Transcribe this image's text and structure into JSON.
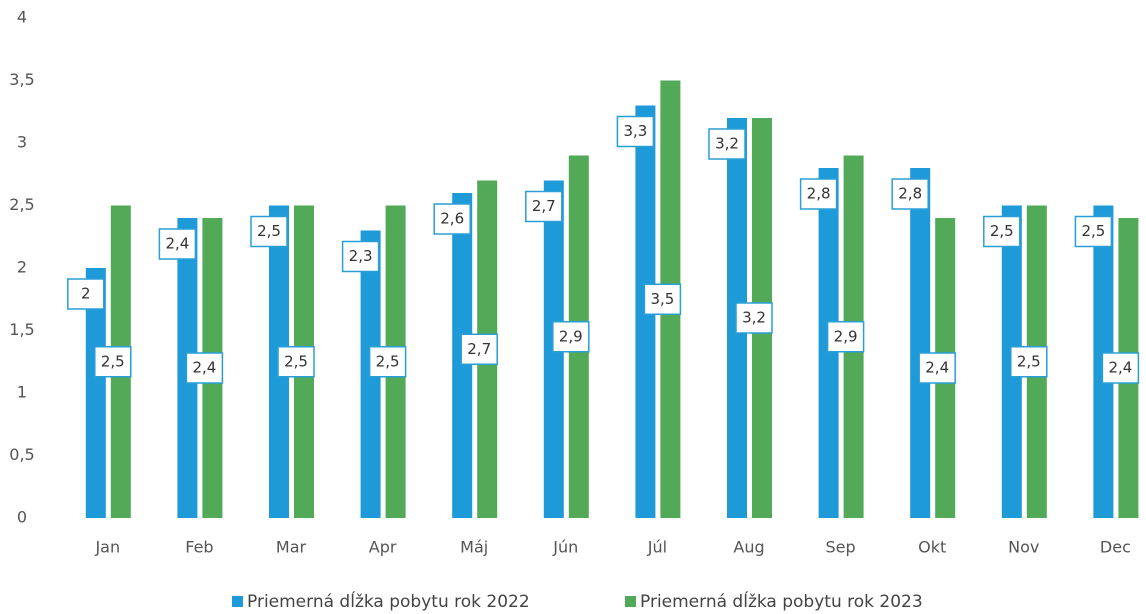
{
  "chart_data": {
    "type": "bar",
    "categories": [
      "Jan",
      "Feb",
      "Mar",
      "Apr",
      "Máj",
      "Jún",
      "Júl",
      "Aug",
      "Sep",
      "Okt",
      "Nov",
      "Dec"
    ],
    "series": [
      {
        "name": "Priemerná dĺžka pobytu rok 2022",
        "color": "#1f9ad8",
        "values": [
          2,
          2.4,
          2.5,
          2.3,
          2.6,
          2.7,
          3.3,
          3.2,
          2.8,
          2.8,
          2.5,
          2.5
        ],
        "value_labels": [
          "2",
          "2,4",
          "2,5",
          "2,3",
          "2,6",
          "2,7",
          "3,3",
          "3,2",
          "2,8",
          "2,8",
          "2,5",
          "2,5"
        ]
      },
      {
        "name": "Priemerná dĺžka pobytu rok 2023",
        "color": "#52a957",
        "values": [
          2.5,
          2.4,
          2.5,
          2.5,
          2.7,
          2.9,
          3.5,
          3.2,
          2.9,
          2.4,
          2.5,
          2.4
        ],
        "value_labels": [
          "2,5",
          "2,4",
          "2,5",
          "2,5",
          "2,7",
          "2,9",
          "3,5",
          "3,2",
          "2,9",
          "2,4",
          "2,5",
          "2,4"
        ]
      }
    ],
    "ylim": [
      0,
      4
    ],
    "yticks": [
      0,
      {
        "value": 0.5,
        "label": "0,5"
      },
      1,
      {
        "value": 1.5,
        "label": "1,5"
      },
      2,
      {
        "value": 2.5,
        "label": "2,5"
      },
      3,
      {
        "value": 3.5,
        "label": "3,5"
      },
      4
    ],
    "grid": false,
    "legend": "bottom"
  }
}
